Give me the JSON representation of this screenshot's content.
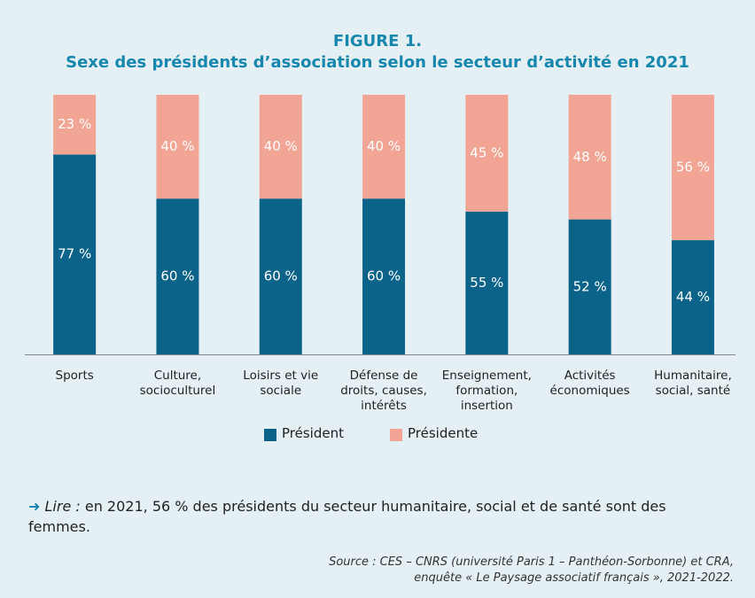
{
  "chart_data": {
    "type": "stacked_bar",
    "title": "FIGURE 1.",
    "subtitle": "Sexe des présidents d’association selon le secteur d’activité en 2021",
    "categories": [
      "Sports",
      "Culture,\nsocioculturel",
      "Loisirs et vie\nsociale",
      "Défense de\ndroits, causes,\nintérêts",
      "Enseignement,\nformation,\ninsertion",
      "Activités\néconomiques",
      "Humanitaire,\nsocial, santé"
    ],
    "series": [
      {
        "name": "Président",
        "color": "#0b6389",
        "values": [
          77,
          60,
          60,
          60,
          55,
          52,
          44
        ],
        "value_labels": [
          "77 %",
          "60 %",
          "60 %",
          "60 %",
          "55 %",
          "52 %",
          "44 %"
        ]
      },
      {
        "name": "Présidente",
        "color": "#f2a595",
        "values": [
          23,
          40,
          40,
          40,
          45,
          48,
          56
        ],
        "value_labels": [
          "23 %",
          "40 %",
          "40 %",
          "40 %",
          "45 %",
          "48 %",
          "56 %"
        ]
      }
    ],
    "legend": "bottom",
    "note": {
      "label": "Lire :",
      "text": "en 2021, 56 % des présidents du secteur humanitaire, social et de santé sont des femmes."
    },
    "source": [
      "Source : CES – CNRS (université Paris 1 – Panthéon-Sorbonne) et CRA,",
      "enquête « Le Paysage associatif français », 2021-2022."
    ]
  }
}
